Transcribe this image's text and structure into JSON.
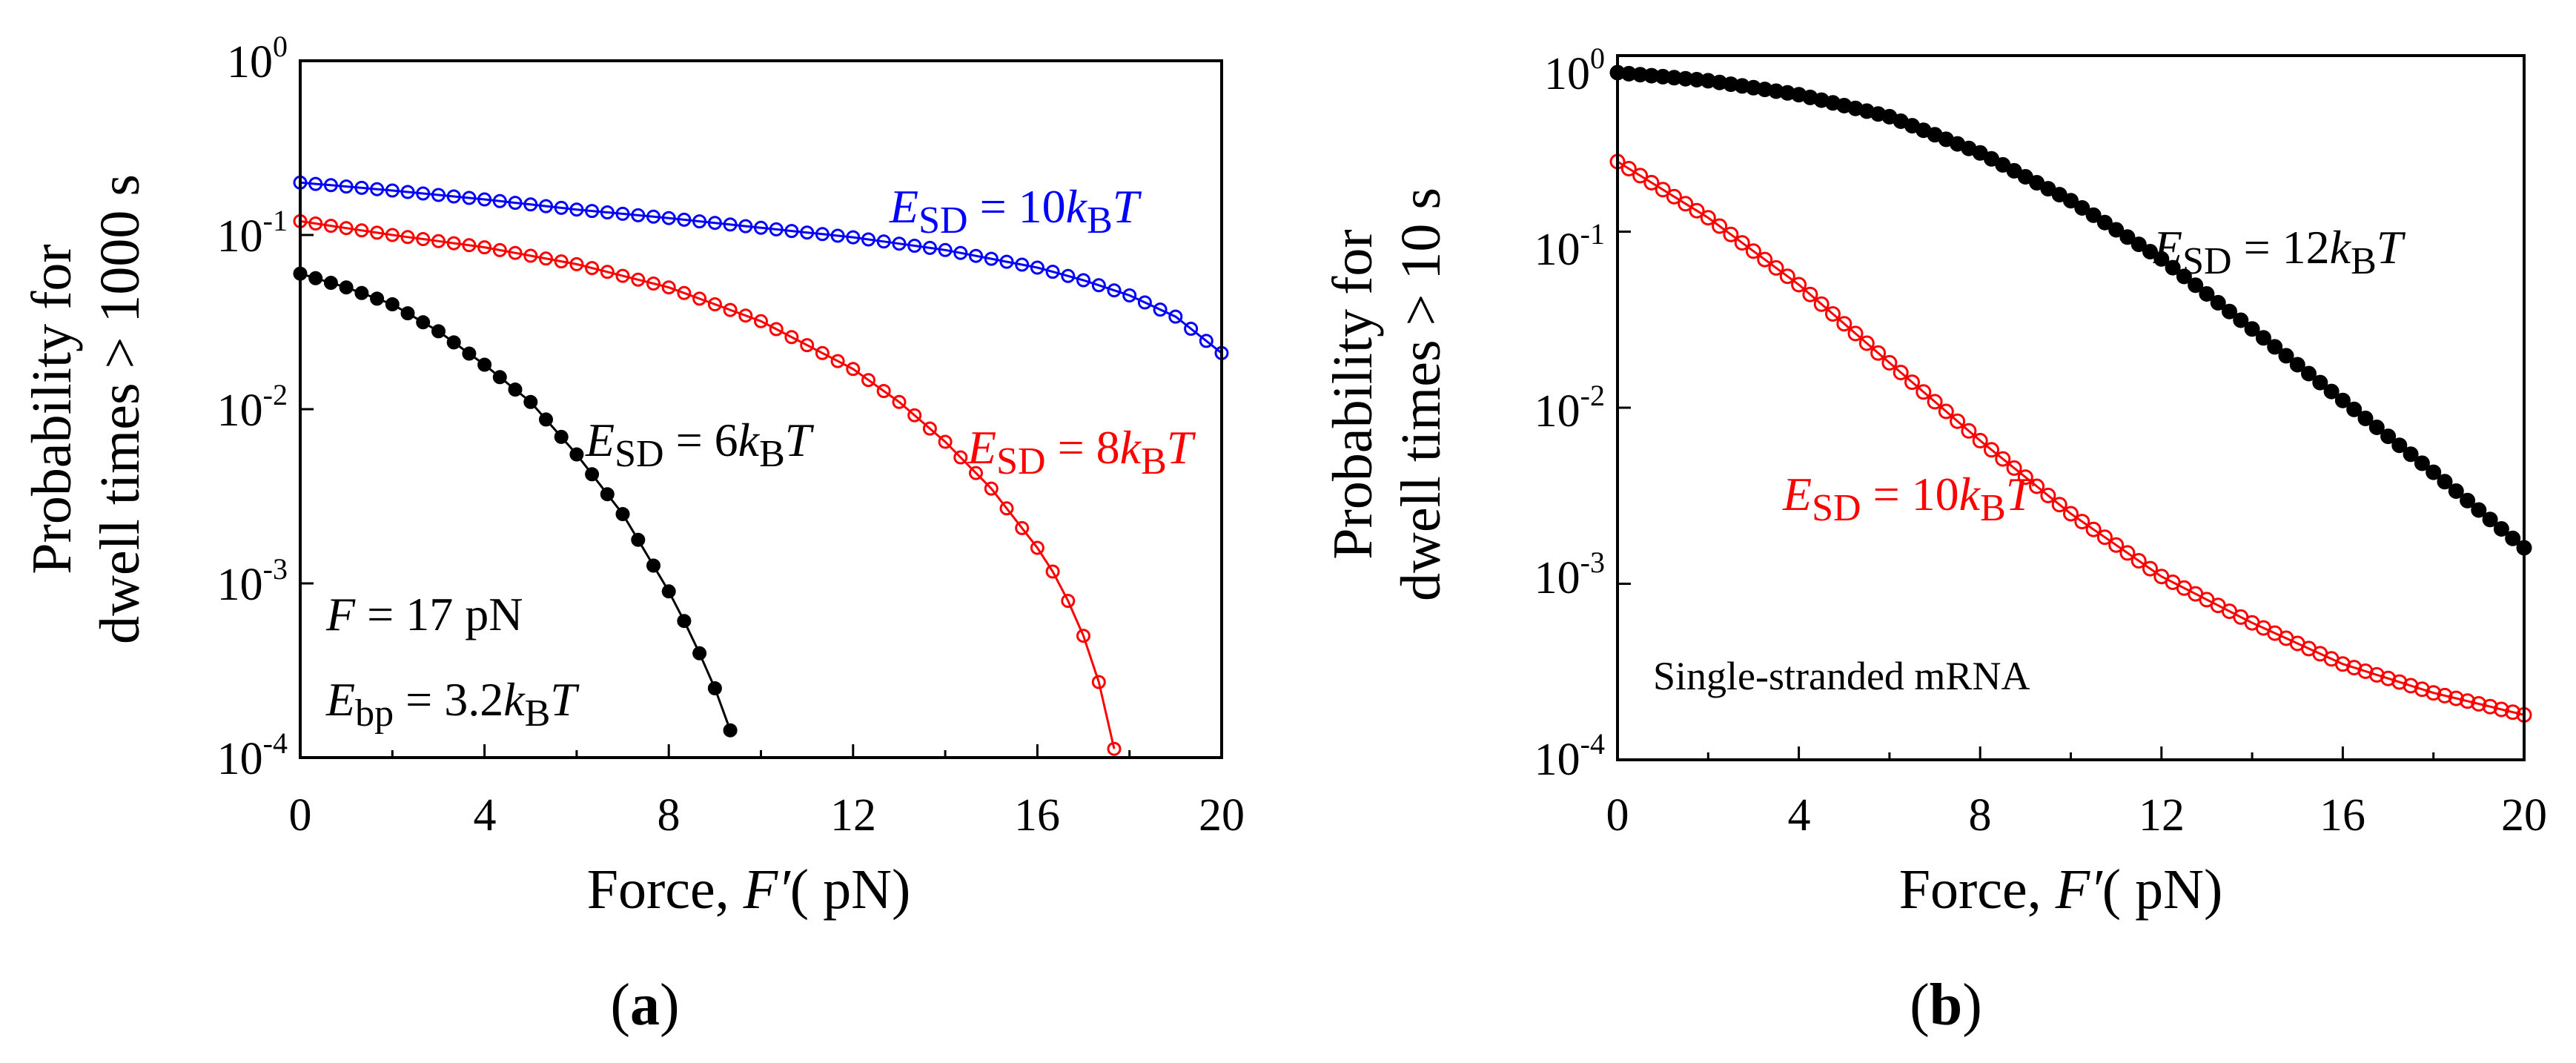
{
  "colors": {
    "black": "#000000",
    "red": "#ff0000",
    "blue": "#0000ff"
  },
  "chart_data": [
    {
      "type": "scatter",
      "panel_label": "a",
      "y_scale": "log",
      "xlim": [
        0,
        20
      ],
      "ylim": [
        0.0001,
        1
      ],
      "x_ticks": [
        "0",
        "4",
        "8",
        "12",
        "16",
        "20"
      ],
      "y_tick_base": "10",
      "y_tick_exponents": [
        "0",
        "-1",
        "-2",
        "-3",
        "-4"
      ],
      "xlabel_prefix": "Force, ",
      "xlabel_var": "F′",
      "xlabel_unit": "( pN)",
      "ylabel_line1": "Probability for",
      "ylabel_line2": "dwell times > 1000 s",
      "annotations": {
        "force": {
          "var": "F",
          "text": " = 17 pN"
        },
        "ebp": {
          "var": "E",
          "sub": "bp",
          "eq": " = 3.2",
          "k": "k",
          "ksub": "B",
          "T": "T"
        }
      },
      "series": [
        {
          "label": {
            "var": "E",
            "sub": "SD",
            "eq": " = 10",
            "k": "k",
            "ksub": "B",
            "T": "T"
          },
          "color": "#0000ff",
          "x": [
            0,
            2,
            4,
            6,
            8,
            10,
            12,
            14,
            16,
            17,
            18,
            19,
            20
          ],
          "y": [
            0.2,
            0.18,
            0.16,
            0.14,
            0.125,
            0.11,
            0.097,
            0.082,
            0.065,
            0.055,
            0.045,
            0.034,
            0.021
          ]
        },
        {
          "label": {
            "var": "E",
            "sub": "SD",
            "eq": " = 8",
            "k": "k",
            "ksub": "B",
            "T": "T"
          },
          "color": "#ff0000",
          "x": [
            0,
            2,
            4,
            6,
            8,
            10,
            12,
            13,
            14,
            15,
            16,
            16.5,
            17,
            17.5,
            17.7
          ],
          "y": [
            0.12,
            0.1,
            0.085,
            0.068,
            0.05,
            0.032,
            0.017,
            0.011,
            0.0065,
            0.0035,
            0.0016,
            0.001,
            0.0005,
            0.0002,
            0.0001
          ]
        },
        {
          "label": {
            "var": "E",
            "sub": "SD",
            "eq": " = 6",
            "k": "k",
            "ksub": "B",
            "T": "T"
          },
          "color": "#000000",
          "x": [
            0,
            1,
            2,
            3,
            4,
            5,
            6,
            7,
            8,
            8.5,
            9,
            9.3,
            9.6
          ],
          "y": [
            0.06,
            0.05,
            0.04,
            0.028,
            0.018,
            0.011,
            0.0055,
            0.0025,
            0.0009,
            0.0005,
            0.00025,
            0.00015,
            0.0001
          ]
        }
      ]
    },
    {
      "type": "scatter",
      "panel_label": "b",
      "y_scale": "log",
      "xlim": [
        0,
        20
      ],
      "ylim": [
        0.0001,
        1
      ],
      "x_ticks": [
        "0",
        "4",
        "8",
        "12",
        "16",
        "20"
      ],
      "y_tick_base": "10",
      "y_tick_exponents": [
        "0",
        "-1",
        "-2",
        "-3",
        "-4"
      ],
      "xlabel_prefix": "Force, ",
      "xlabel_var": "F′",
      "xlabel_unit": "( pN)",
      "ylabel_line1": "Probability for",
      "ylabel_line2": "dwell times > 10 s",
      "annotations": {
        "inset": {
          "text": "Single-stranded mRNA"
        }
      },
      "series": [
        {
          "label": {
            "var": "E",
            "sub": "SD",
            "eq": " = 12",
            "k": "k",
            "ksub": "B",
            "T": "T"
          },
          "color": "#000000",
          "x": [
            0,
            2,
            4,
            6,
            8,
            10,
            12,
            14,
            16,
            18,
            20
          ],
          "y": [
            0.8,
            0.72,
            0.6,
            0.45,
            0.28,
            0.15,
            0.07,
            0.028,
            0.011,
            0.0043,
            0.0016
          ]
        },
        {
          "label": {
            "var": "E",
            "sub": "SD",
            "eq": " = 10",
            "k": "k",
            "ksub": "B",
            "T": "T"
          },
          "color": "#ff0000",
          "x": [
            0,
            2,
            4,
            6,
            8,
            10,
            12,
            14,
            16,
            18,
            20
          ],
          "y": [
            0.25,
            0.12,
            0.05,
            0.018,
            0.0065,
            0.0025,
            0.0011,
            0.0006,
            0.00035,
            0.00024,
            0.00018
          ]
        }
      ]
    }
  ]
}
